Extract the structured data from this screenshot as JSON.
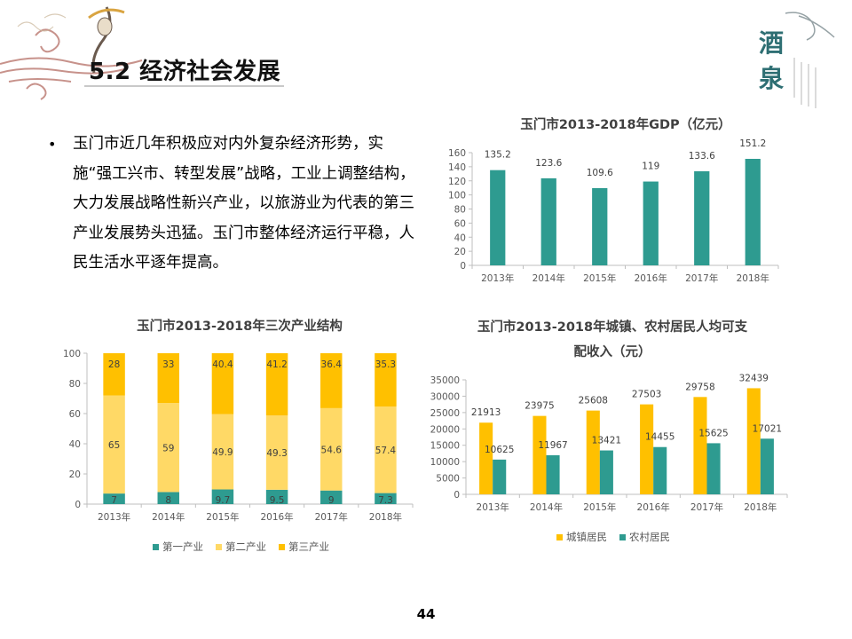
{
  "slide": {
    "title": "5.2 经济社会发展",
    "bullet": "玉门市近几年积极应对内外复杂经济形势，实施“强工兴市、转型发展”战略，工业上调整结构，大力发展战略性新兴产业，以旅游业为代表的第三产业发展势头迅猛。玉门市整体经济运行平稳，人民生活水平逐年提高。",
    "bullet_symbol": "•",
    "page_number": "44"
  },
  "colors": {
    "teal": "#2e9b90",
    "light_yellow": "#ffd966",
    "gold": "#ffc000",
    "axis": "#bfbfbf",
    "deco_red": "#9b3a2e"
  },
  "chart_data": [
    {
      "type": "bar",
      "title": "玉门市2013-2018年GDP（亿元）",
      "categories": [
        "2013年",
        "2014年",
        "2015年",
        "2016年",
        "2017年",
        "2018年"
      ],
      "values": [
        135.2,
        123.6,
        109.6,
        119,
        133.6,
        151.2
      ],
      "value_labels": [
        "135.2",
        "123.6",
        "109.6",
        "119",
        "133.6",
        "151.2"
      ],
      "ylim": [
        0,
        160
      ],
      "yticks": [
        "0",
        "20",
        "40",
        "60",
        "80",
        "100",
        "120",
        "140",
        "160"
      ],
      "color": "#2e9b90",
      "grid": false
    },
    {
      "type": "bar",
      "stacked": true,
      "title": "玉门市2013-2018年三次产业结构",
      "categories": [
        "2013年",
        "2014年",
        "2015年",
        "2016年",
        "2017年",
        "2018年"
      ],
      "series": [
        {
          "name": "第一产业",
          "values": [
            7,
            8,
            9.7,
            9.5,
            9,
            7.3
          ],
          "labels": [
            "7",
            "8",
            "9.7",
            "9.5",
            "9",
            "7.3"
          ],
          "color": "#2e9b90"
        },
        {
          "name": "第二产业",
          "values": [
            65,
            59,
            49.9,
            49.3,
            54.6,
            57.4
          ],
          "labels": [
            "65",
            "59",
            "49.9",
            "49.3",
            "54.6",
            "57.4"
          ],
          "color": "#ffd966"
        },
        {
          "name": "第三产业",
          "values": [
            28,
            33,
            40.4,
            41.2,
            36.4,
            35.3
          ],
          "labels": [
            "28",
            "33",
            "40.4",
            "41.2",
            "36.4",
            "35.3"
          ],
          "color": "#ffc000"
        }
      ],
      "ylim": [
        0,
        100
      ],
      "yticks": [
        "0",
        "20",
        "40",
        "60",
        "80",
        "100"
      ],
      "legend": "bottom",
      "grid": false
    },
    {
      "type": "bar",
      "title_lines": [
        "玉门市2013-2018年城镇、农村居民人均可支",
        "配收入（元）"
      ],
      "categories": [
        "2013年",
        "2014年",
        "2015年",
        "2016年",
        "2017年",
        "2018年"
      ],
      "series": [
        {
          "name": "城镇居民",
          "values": [
            21913,
            23975,
            25608,
            27503,
            29758,
            32439
          ],
          "labels": [
            "21913",
            "23975",
            "25608",
            "27503",
            "29758",
            "32439"
          ],
          "color": "#ffc000"
        },
        {
          "name": "农村居民",
          "values": [
            10625,
            11967,
            13421,
            14455,
            15625,
            17021
          ],
          "labels": [
            "10625",
            "11967",
            "13421",
            "14455",
            "15625",
            "17021"
          ],
          "color": "#2e9b90"
        }
      ],
      "ylim": [
        0,
        35000
      ],
      "yticks": [
        "0",
        "5000",
        "10000",
        "15000",
        "20000",
        "25000",
        "30000",
        "35000"
      ],
      "legend": "bottom",
      "grid": false
    }
  ]
}
